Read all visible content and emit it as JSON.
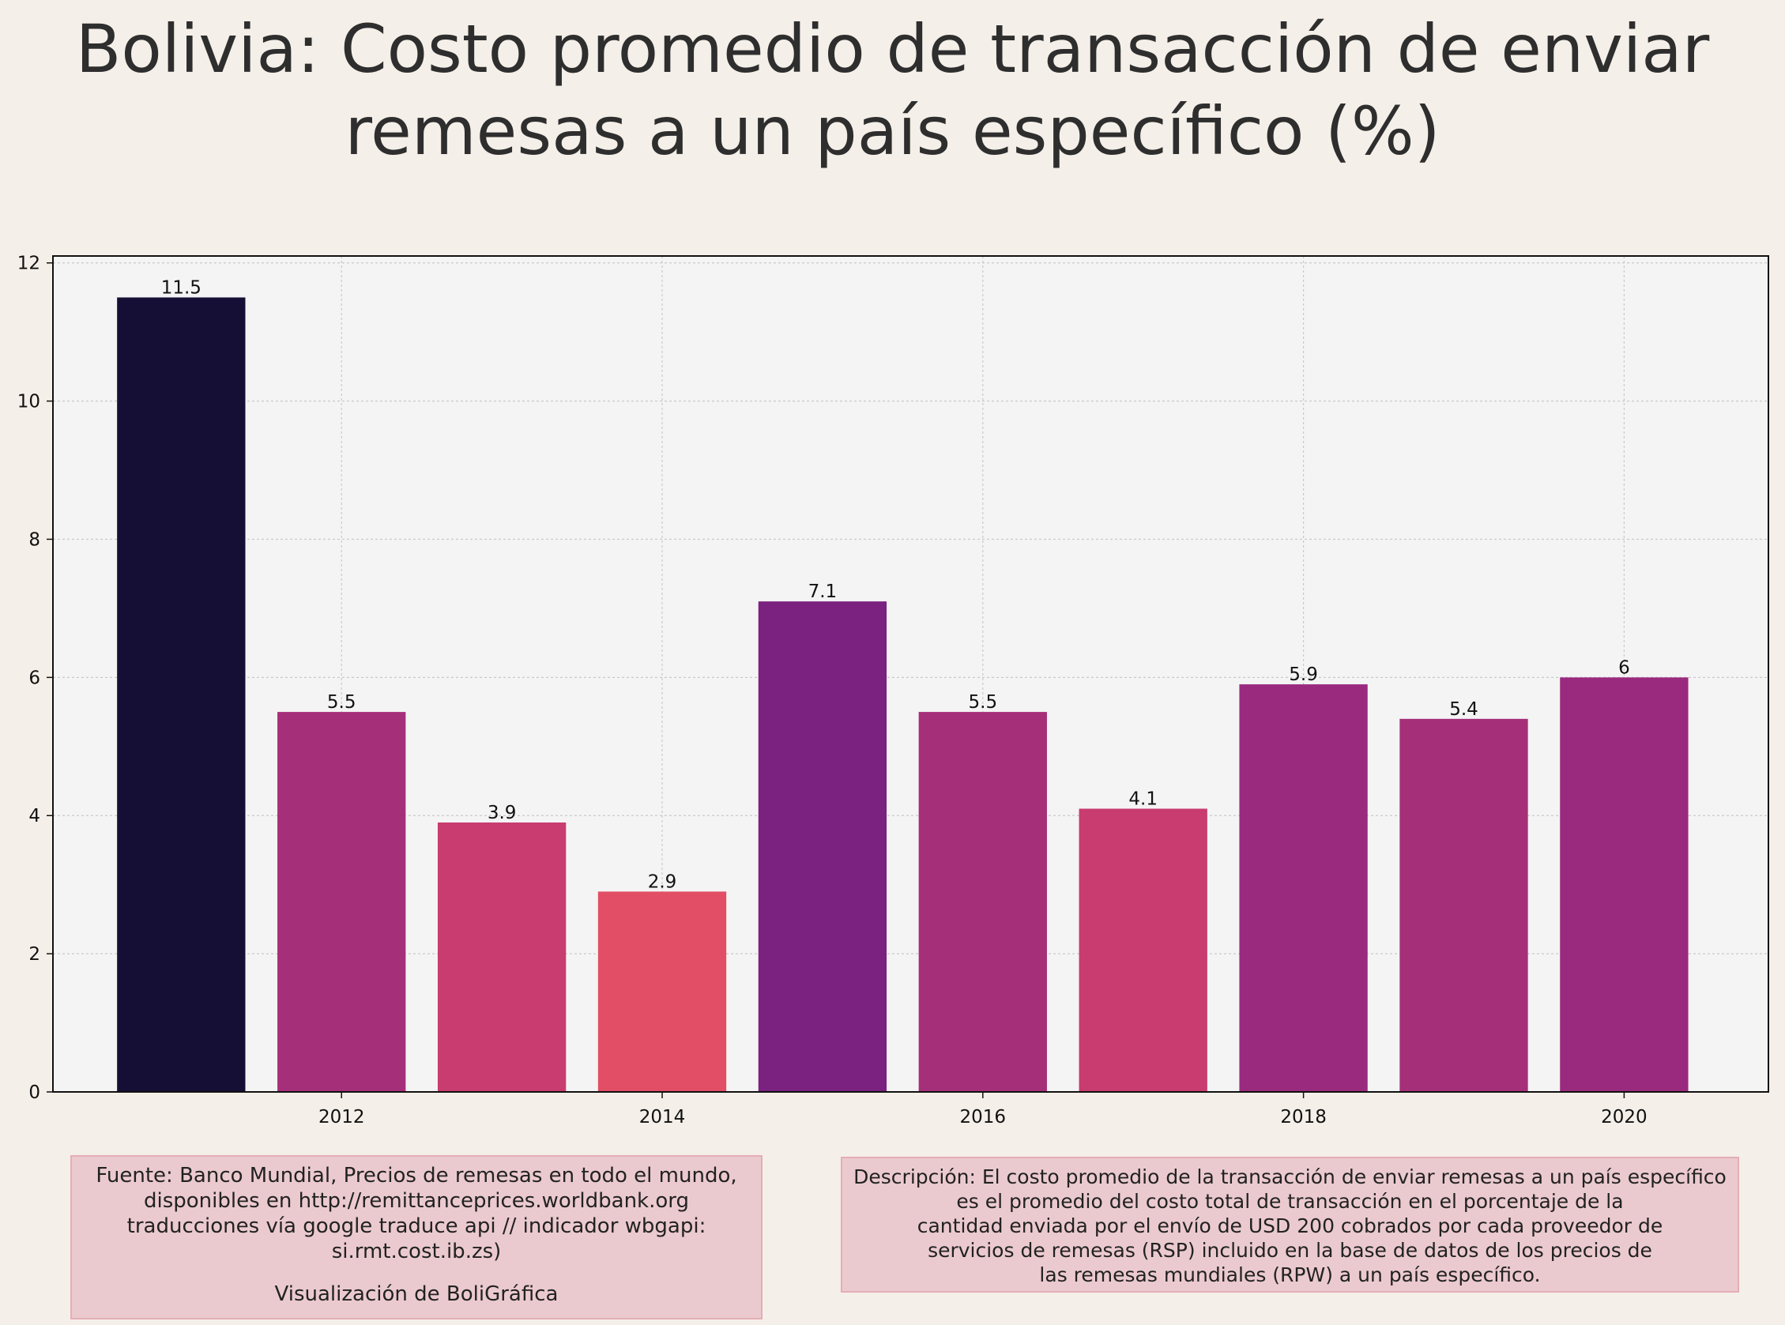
{
  "title": "Bolivia:  Costo promedio de transacción de enviar\nremesas a un país específico (%)",
  "colors": {
    "background": "#f4efe8",
    "plot_background": "#f4f4f4",
    "note_box_fill": "#ebcacf",
    "note_box_border": "#e5aeb6"
  },
  "chart_data": {
    "type": "bar",
    "title": "Bolivia:  Costo promedio de transacción de enviar remesas a un país específico (%)",
    "xlabel": "",
    "ylabel": "",
    "x": [
      2011,
      2012,
      2013,
      2014,
      2015,
      2016,
      2017,
      2018,
      2019,
      2020
    ],
    "values": [
      11.5,
      5.5,
      3.9,
      2.9,
      7.1,
      5.5,
      4.1,
      5.9,
      5.4,
      6
    ],
    "value_labels": [
      "11.5",
      "5.5",
      "3.9",
      "2.9",
      "7.1",
      "5.5",
      "4.1",
      "5.9",
      "5.4",
      "6"
    ],
    "bar_colors": [
      "#160f35",
      "#a62f7a",
      "#c83c6f",
      "#e24e65",
      "#7b2180",
      "#a62f7a",
      "#c83c6f",
      "#9a2a7e",
      "#a62f7a",
      "#9a2a7e"
    ],
    "xticks": [
      2012,
      2014,
      2016,
      2018,
      2020
    ],
    "yticks": [
      0,
      2,
      4,
      6,
      8,
      10,
      12
    ],
    "ylim": [
      0,
      12.1
    ],
    "xlim": [
      2010.2,
      2020.9
    ],
    "grid": true
  },
  "source_box": {
    "lines": [
      "Fuente: Banco Mundial, Precios de remesas en todo el mundo,",
      "disponibles en http://remittanceprices.worldbank.org",
      "traducciones vía google traduce api // indicador wbgapi:",
      "si.rmt.cost.ib.zs)"
    ],
    "credit": "Visualización de BoliGráfica"
  },
  "description_box": {
    "lines": [
      "Descripción: El costo promedio de la transacción de enviar remesas a un país específico",
      "es el promedio del costo total de transacción en el porcentaje de la",
      "cantidad enviada por el envío de USD 200 cobrados por cada proveedor de",
      "servicios de remesas (RSP) incluido en la base de datos de los precios de",
      "las remesas mundiales (RPW) a un país específico."
    ]
  }
}
